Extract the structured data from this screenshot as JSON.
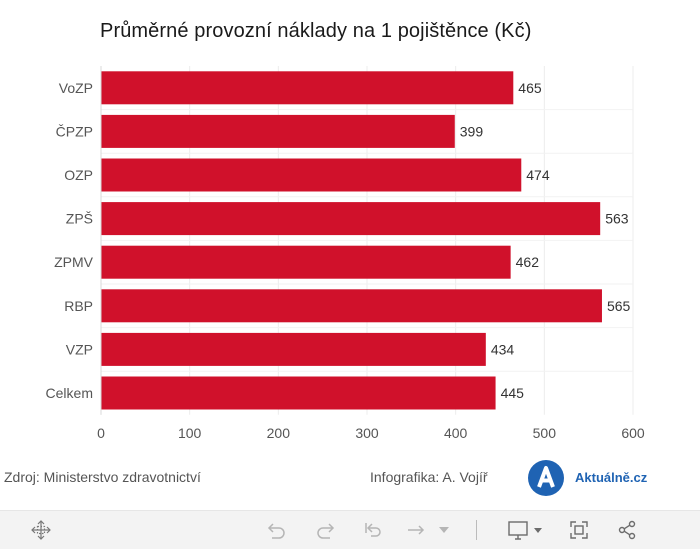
{
  "title": "Průměrné provozní náklady na 1 pojištěnce (Kč)",
  "chart_data": {
    "type": "bar",
    "orientation": "horizontal",
    "categories": [
      "VoZP",
      "ČPZP",
      "OZP",
      "ZPŠ",
      "ZPMV",
      "RBP",
      "VZP",
      "Celkem"
    ],
    "values": [
      465,
      399,
      474,
      563,
      462,
      565,
      434,
      445
    ],
    "xlim": [
      0,
      600
    ],
    "xticks": [
      "0",
      "100",
      "200",
      "300",
      "400",
      "500",
      "600"
    ],
    "grid": "vertical",
    "bar_color": "#d0112b",
    "data_labels": true
  },
  "footer": {
    "source": "Zdroj: Ministerstvo zdravotnictví",
    "credit": "Infografika: A. Vojíř",
    "logo_letter": "A",
    "logo_text": "Aktuálně.cz",
    "logo_color": "#1f63b3"
  },
  "toolbar": {
    "icons": [
      "move-icon",
      "undo-icon",
      "redo-icon",
      "revert-icon",
      "refresh-icon",
      "dropdown-arrow-icon",
      "download-icon",
      "fullscreen-icon",
      "share-icon"
    ]
  }
}
